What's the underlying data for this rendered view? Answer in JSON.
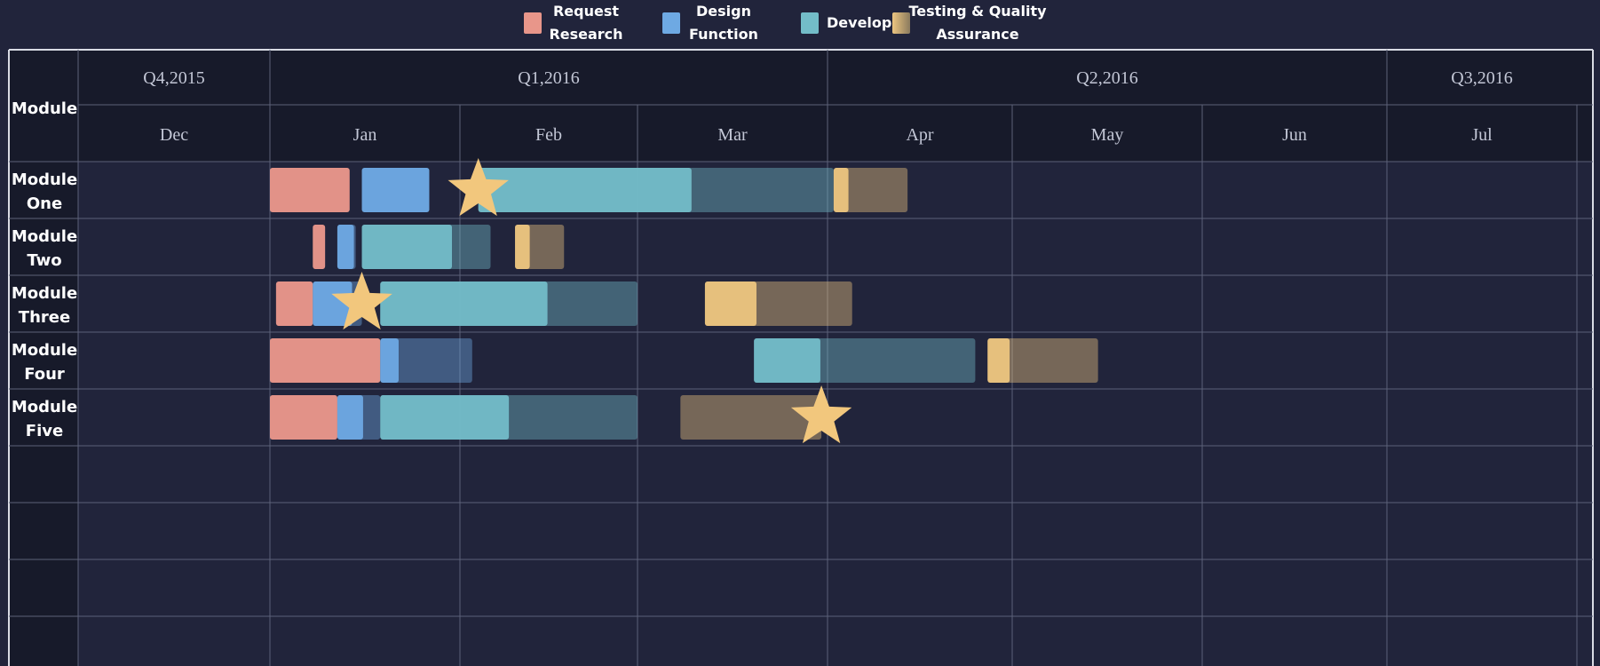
{
  "chart_data": {
    "type": "gantt",
    "legend": [
      {
        "key": "request",
        "lines": [
          "Request",
          "Research"
        ],
        "color": "#e8968a"
      },
      {
        "key": "design",
        "lines": [
          "Design",
          "Function"
        ],
        "color": "#6ea9e3"
      },
      {
        "key": "develop",
        "lines": [
          "Develop"
        ],
        "color": "#73bcc8"
      },
      {
        "key": "testing",
        "lines": [
          "Testing & Quality",
          "Assurance"
        ],
        "color": "#ecc580"
      }
    ],
    "row_header": "Module",
    "quarters": [
      {
        "label": "Q4,2015",
        "start": "2015-11-30",
        "end": "2016-01-01"
      },
      {
        "label": "Q1,2016",
        "start": "2016-01-01",
        "end": "2016-04-01"
      },
      {
        "label": "Q2,2016",
        "start": "2016-04-01",
        "end": "2016-07-01"
      },
      {
        "label": "Q3,2016",
        "start": "2016-07-01",
        "end": "2016-08-01"
      }
    ],
    "months": [
      {
        "label": "Dec",
        "start": "2015-11-30",
        "end": "2016-01-01"
      },
      {
        "label": "Jan",
        "start": "2016-01-01",
        "end": "2016-02-01"
      },
      {
        "label": "Feb",
        "start": "2016-02-01",
        "end": "2016-03-01"
      },
      {
        "label": "Mar",
        "start": "2016-03-01",
        "end": "2016-04-01"
      },
      {
        "label": "Apr",
        "start": "2016-04-01",
        "end": "2016-05-01"
      },
      {
        "label": "May",
        "start": "2016-05-01",
        "end": "2016-06-01"
      },
      {
        "label": "Jun",
        "start": "2016-06-01",
        "end": "2016-07-01"
      },
      {
        "label": "Jul",
        "start": "2016-07-01",
        "end": "2016-08-01"
      }
    ],
    "rows": [
      {
        "lines": [
          "Module",
          "One"
        ],
        "tasks": [
          {
            "phase": "request",
            "start": "2016-01-01",
            "end": "2016-01-14",
            "progress": 1
          },
          {
            "phase": "design",
            "start": "2016-01-16",
            "end": "2016-01-27",
            "progress": 1
          },
          {
            "phase": "develop",
            "start": "2016-02-04",
            "end": "2016-04-02",
            "progress": 0.6
          },
          {
            "phase": "testing",
            "start": "2016-04-02",
            "end": "2016-04-14",
            "progress": 0.2
          }
        ],
        "milestones": [
          "2016-02-04"
        ]
      },
      {
        "lines": [
          "Module",
          "Two"
        ],
        "tasks": [
          {
            "phase": "request",
            "start": "2016-01-08",
            "end": "2016-01-10",
            "progress": 1
          },
          {
            "phase": "design",
            "start": "2016-01-12",
            "end": "2016-01-15",
            "progress": 0.9
          },
          {
            "phase": "develop",
            "start": "2016-01-16",
            "end": "2016-02-06",
            "progress": 0.7
          },
          {
            "phase": "testing",
            "start": "2016-02-10",
            "end": "2016-02-18",
            "progress": 0.3
          }
        ],
        "milestones": []
      },
      {
        "lines": [
          "Module",
          "Three"
        ],
        "tasks": [
          {
            "phase": "request",
            "start": "2016-01-02",
            "end": "2016-01-08",
            "progress": 1
          },
          {
            "phase": "design",
            "start": "2016-01-08",
            "end": "2016-01-16",
            "progress": 0.8
          },
          {
            "phase": "develop",
            "start": "2016-01-19",
            "end": "2016-03-01",
            "progress": 0.65
          },
          {
            "phase": "testing",
            "start": "2016-03-12",
            "end": "2016-04-05",
            "progress": 0.35
          }
        ],
        "milestones": [
          "2016-01-16"
        ]
      },
      {
        "lines": [
          "Module",
          "Four"
        ],
        "tasks": [
          {
            "phase": "request",
            "start": "2016-01-01",
            "end": "2016-01-19",
            "progress": 1
          },
          {
            "phase": "design",
            "start": "2016-01-19",
            "end": "2016-02-03",
            "progress": 0.2
          },
          {
            "phase": "develop",
            "start": "2016-03-20",
            "end": "2016-04-25",
            "progress": 0.3
          },
          {
            "phase": "testing",
            "start": "2016-04-27",
            "end": "2016-05-15",
            "progress": 0.2
          }
        ],
        "milestones": []
      },
      {
        "lines": [
          "Module",
          "Five"
        ],
        "tasks": [
          {
            "phase": "request",
            "start": "2016-01-01",
            "end": "2016-01-12",
            "progress": 1
          },
          {
            "phase": "design",
            "start": "2016-01-12",
            "end": "2016-01-19",
            "progress": 0.6
          },
          {
            "phase": "develop",
            "start": "2016-01-19",
            "end": "2016-03-01",
            "progress": 0.5
          },
          {
            "phase": "testing",
            "start": "2016-03-08",
            "end": "2016-03-31",
            "progress": 0
          }
        ],
        "milestones": [
          "2016-03-31"
        ]
      },
      {
        "lines": [],
        "tasks": [],
        "milestones": []
      },
      {
        "lines": [],
        "tasks": [],
        "milestones": []
      },
      {
        "lines": [],
        "tasks": [],
        "milestones": []
      },
      {
        "lines": [],
        "tasks": [],
        "milestones": []
      }
    ]
  }
}
